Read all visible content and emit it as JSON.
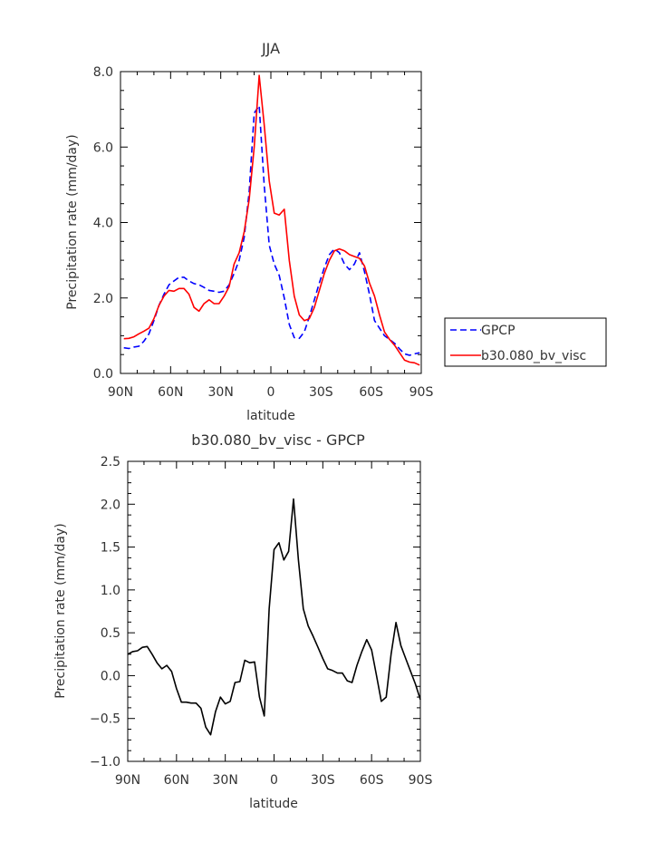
{
  "chart_data": [
    {
      "type": "line",
      "title": "JJA",
      "xlabel": "latitude",
      "ylabel": "Precipitation rate (mm/day)",
      "xlim": [
        -90,
        90
      ],
      "ylim": [
        0,
        8
      ],
      "xticks": [
        -90,
        -60,
        -30,
        0,
        30,
        60,
        90
      ],
      "xtick_labels": [
        "90N",
        "60N",
        "30N",
        "0",
        "30S",
        "60S",
        "90S"
      ],
      "yticks": [
        0,
        2,
        4,
        6,
        8
      ],
      "ytick_labels": [
        "0.0",
        "2.0",
        "4.0",
        "6.0",
        "8.0"
      ],
      "legend_position": "right",
      "series": [
        {
          "name": "GPCP",
          "color": "#0000ff",
          "dash": "dashed",
          "x": [
            -88,
            -85,
            -82,
            -79,
            -76,
            -73,
            -70,
            -67,
            -64,
            -61,
            -58,
            -55,
            -52,
            -49,
            -46,
            -43,
            -40,
            -37,
            -34,
            -31,
            -28,
            -25,
            -22,
            -19,
            -16,
            -13,
            -10,
            -7,
            -4,
            -1,
            2,
            5,
            8,
            11,
            14,
            17,
            20,
            23,
            26,
            29,
            32,
            35,
            38,
            41,
            44,
            47,
            50,
            53,
            56,
            59,
            62,
            65,
            68,
            71,
            74,
            77,
            80,
            83,
            86,
            89
          ],
          "y": [
            0.68,
            0.66,
            0.7,
            0.72,
            0.85,
            1.05,
            1.4,
            1.8,
            2.1,
            2.35,
            2.45,
            2.55,
            2.55,
            2.45,
            2.38,
            2.35,
            2.28,
            2.2,
            2.18,
            2.15,
            2.18,
            2.35,
            2.65,
            3.0,
            3.6,
            4.8,
            6.9,
            7.1,
            5.0,
            3.4,
            2.9,
            2.6,
            2.0,
            1.3,
            0.95,
            0.93,
            1.1,
            1.5,
            1.95,
            2.4,
            2.8,
            3.15,
            3.3,
            3.2,
            2.9,
            2.75,
            2.9,
            3.2,
            2.7,
            2.1,
            1.4,
            1.2,
            1.0,
            0.9,
            0.8,
            0.65,
            0.52,
            0.48,
            0.52,
            0.55
          ]
        },
        {
          "name": "b30.080_bv_visc",
          "color": "#ff0000",
          "dash": "solid",
          "x": [
            -88,
            -85,
            -82,
            -79,
            -76,
            -73,
            -70,
            -67,
            -64,
            -61,
            -58,
            -55,
            -52,
            -49,
            -46,
            -43,
            -40,
            -37,
            -34,
            -31,
            -28,
            -25,
            -22,
            -19,
            -16,
            -13,
            -10,
            -7,
            -4,
            -1,
            2,
            5,
            8,
            11,
            14,
            17,
            20,
            23,
            26,
            29,
            32,
            35,
            38,
            41,
            44,
            47,
            50,
            53,
            56,
            59,
            62,
            65,
            68,
            71,
            74,
            77,
            80,
            83,
            86,
            89
          ],
          "y": [
            0.92,
            0.93,
            0.97,
            1.05,
            1.12,
            1.2,
            1.45,
            1.8,
            2.05,
            2.2,
            2.18,
            2.25,
            2.25,
            2.1,
            1.75,
            1.65,
            1.85,
            1.95,
            1.85,
            1.85,
            2.05,
            2.3,
            2.9,
            3.2,
            3.75,
            4.6,
            6.0,
            7.9,
            6.6,
            5.1,
            4.25,
            4.2,
            4.35,
            3.0,
            2.05,
            1.55,
            1.4,
            1.45,
            1.75,
            2.2,
            2.65,
            3.0,
            3.25,
            3.3,
            3.25,
            3.15,
            3.1,
            3.05,
            2.85,
            2.4,
            2.05,
            1.55,
            1.1,
            0.9,
            0.75,
            0.55,
            0.35,
            0.3,
            0.28,
            0.22
          ]
        }
      ]
    },
    {
      "type": "line",
      "title": "b30.080_bv_visc - GPCP",
      "xlabel": "latitude",
      "ylabel": "Precipitation rate (mm/day)",
      "xlim": [
        -90,
        90
      ],
      "ylim": [
        -1,
        2.5
      ],
      "xticks": [
        -90,
        -60,
        -30,
        0,
        30,
        60,
        90
      ],
      "xtick_labels": [
        "90N",
        "60N",
        "30N",
        "0",
        "30S",
        "60S",
        "90S"
      ],
      "yticks": [
        -1,
        -0.5,
        0,
        0.5,
        1,
        1.5,
        2,
        2.5
      ],
      "ytick_labels": [
        "−1.0",
        "−0.5",
        "0.0",
        "0.5",
        "1.0",
        "1.5",
        "2.0",
        "2.5"
      ],
      "series": [
        {
          "color": "#000000",
          "dash": "solid",
          "x": [
            -90,
            -87,
            -84,
            -81,
            -78,
            -75,
            -72,
            -69,
            -66,
            -63,
            -60,
            -57,
            -54,
            -51,
            -48,
            -45,
            -42,
            -39,
            -36,
            -33,
            -30,
            -27,
            -24,
            -21,
            -18,
            -15,
            -12,
            -9,
            -6,
            -3,
            0,
            3,
            6,
            9,
            12,
            15,
            18,
            21,
            24,
            27,
            30,
            33,
            36,
            39,
            42,
            45,
            48,
            51,
            54,
            57,
            60,
            63,
            66,
            69,
            72,
            75,
            78,
            81,
            84,
            87,
            90
          ],
          "y": [
            0.25,
            0.28,
            0.29,
            0.33,
            0.34,
            0.25,
            0.15,
            0.08,
            0.12,
            0.05,
            -0.15,
            -0.31,
            -0.31,
            -0.32,
            -0.32,
            -0.38,
            -0.6,
            -0.69,
            -0.42,
            -0.25,
            -0.33,
            -0.3,
            -0.08,
            -0.07,
            0.18,
            0.15,
            0.16,
            -0.25,
            -0.47,
            0.78,
            1.47,
            1.55,
            1.35,
            1.45,
            2.06,
            1.35,
            0.78,
            0.58,
            0.46,
            0.33,
            0.2,
            0.08,
            0.06,
            0.03,
            0.03,
            -0.06,
            -0.08,
            0.12,
            0.28,
            0.42,
            0.3,
            0.0,
            -0.3,
            -0.25,
            0.25,
            0.62,
            0.35,
            0.2,
            0.05,
            -0.1,
            -0.28
          ]
        }
      ]
    }
  ]
}
